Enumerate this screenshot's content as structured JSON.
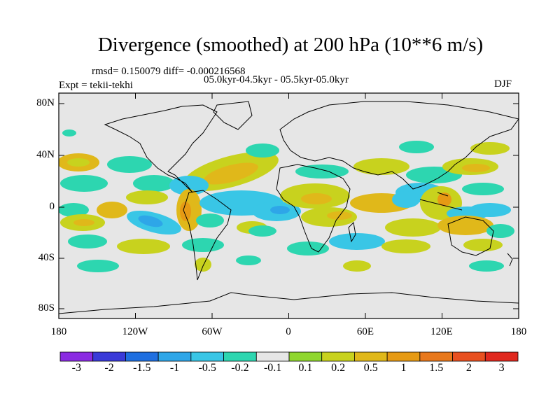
{
  "title": "Divergence (smoothed) at 200 hPa (10**6 m/s)",
  "stats": "rmsd= 0.150079 diff= -0.000216568",
  "periods": "05.0kyr-04.5kyr - 05.5kyr-05.0kyr",
  "expt": "Expt = tekii-tekhi",
  "season": "DJF",
  "lat_ticks": [
    "80N",
    "40N",
    "0",
    "40S",
    "80S"
  ],
  "lon_ticks": [
    "180",
    "120W",
    "60W",
    "0",
    "60E",
    "120E",
    "180"
  ],
  "colorbar": {
    "colors": [
      "#8a2be2",
      "#3a3ad8",
      "#1f6fe0",
      "#2ea6e8",
      "#39c6e6",
      "#2dd6b0",
      "#e6e6e6",
      "#8fd62e",
      "#c8d21e",
      "#e0b81a",
      "#e69a14",
      "#e8781c",
      "#e85020",
      "#e0281e"
    ],
    "labels": [
      "-3",
      "-2",
      "-1.5",
      "-1",
      "-0.5",
      "-0.2",
      "-0.1",
      "0.1",
      "0.2",
      "0.5",
      "1",
      "1.5",
      "2",
      "3"
    ]
  }
}
